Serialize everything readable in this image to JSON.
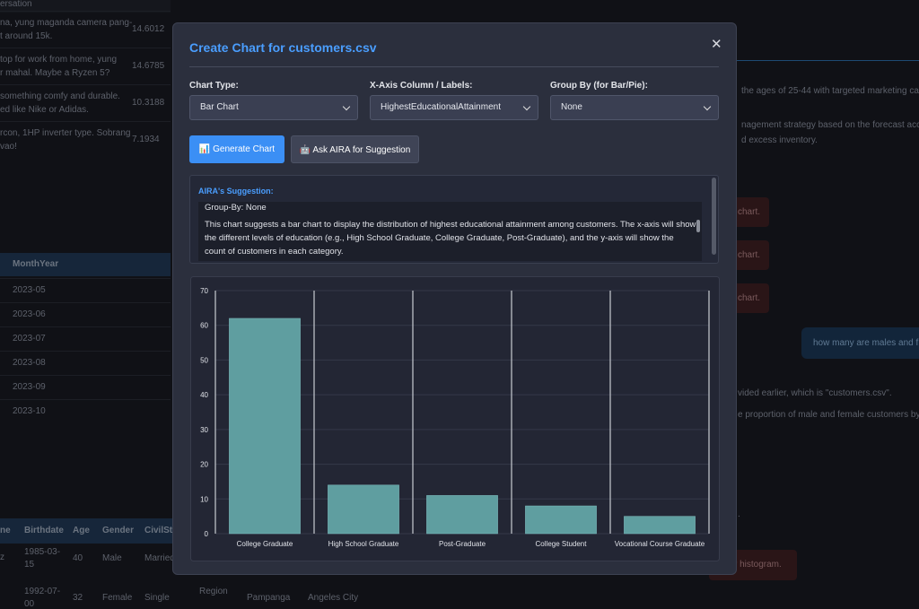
{
  "background": {
    "chat_table": {
      "header": "ersation",
      "rows": [
        [
          "na, yung maganda camera pang-",
          "t around 15k.",
          14.6012
        ],
        [
          "top for work from home, yung",
          "r mahal. Maybe a Ryzen 5?",
          14.6785
        ],
        [
          "something comfy and durable.",
          "ed like Nike or Adidas.",
          10.3188
        ],
        [
          "rcon, 1HP inverter type. Sobrang",
          "vao!",
          7.1934
        ]
      ]
    },
    "forecast_table": {
      "header": "MonthYear",
      "rows": [
        "2023-05",
        "2023-06",
        "2023-07",
        "2023-08",
        "2023-09",
        "2023-10"
      ]
    },
    "customer_table": {
      "headers": [
        "ne",
        "Birthdate",
        "Age",
        "Gender",
        "CivilSta"
      ],
      "row1": {
        "name": "z",
        "birthdate": [
          "1985-03-",
          "15"
        ],
        "age": 40,
        "gender": "Male",
        "civil": "Married"
      },
      "row2": {
        "birthdate": [
          "1992-07-",
          "00"
        ],
        "age": 32,
        "gender": "Female",
        "civil": "Single",
        "region": "Region",
        "province": "Pampanga",
        "city": "Angeles City"
      }
    },
    "chat": {
      "line1": "the ages of 25-44 with targeted marketing ca",
      "line2": "nagement strategy based on the forecast acc",
      "line3": "d excess inventory.",
      "error_buttons": [
        "chart.",
        "chart.",
        "chart."
      ],
      "user_message": "how many are males and f",
      "reply1": "vided earlier, which is \"customers.csv\".",
      "reply2": "e proportion of male and female customers by",
      "reply3": ".",
      "error_button_last": "r histogram."
    }
  },
  "modal": {
    "title": "Create Chart for customers.csv",
    "close": "✕",
    "fields": [
      {
        "label": "Chart Type:",
        "value": "Bar Chart"
      },
      {
        "label": "X-Axis Column / Labels:",
        "value": "HighestEducationalAttainment"
      },
      {
        "label": "Group By (for Bar/Pie):",
        "value": "None"
      }
    ],
    "buttons": [
      "📊 Generate Chart",
      "🤖 Ask AIRA for Suggestion"
    ],
    "suggestion": {
      "heading": "AIRA's Suggestion:",
      "group_by": "Group-By: None",
      "text": "This chart suggests a bar chart to display the distribution of highest educational attainment among customers. The x-axis will show the different levels of education (e.g., High School Graduate, College Graduate, Post-Graduate), and the y-axis will show the count of customers in each category."
    }
  },
  "chart_data": {
    "type": "bar",
    "categories": [
      "College Graduate",
      "High School Graduate",
      "Post-Graduate",
      "College Student",
      "Vocational Course Graduate"
    ],
    "values": [
      62,
      14,
      11,
      8,
      5
    ],
    "color": "#5f9ea0",
    "ylim": [
      0,
      70
    ],
    "yticks": [
      0,
      10,
      20,
      30,
      40,
      50,
      60,
      70
    ],
    "grid": true
  }
}
